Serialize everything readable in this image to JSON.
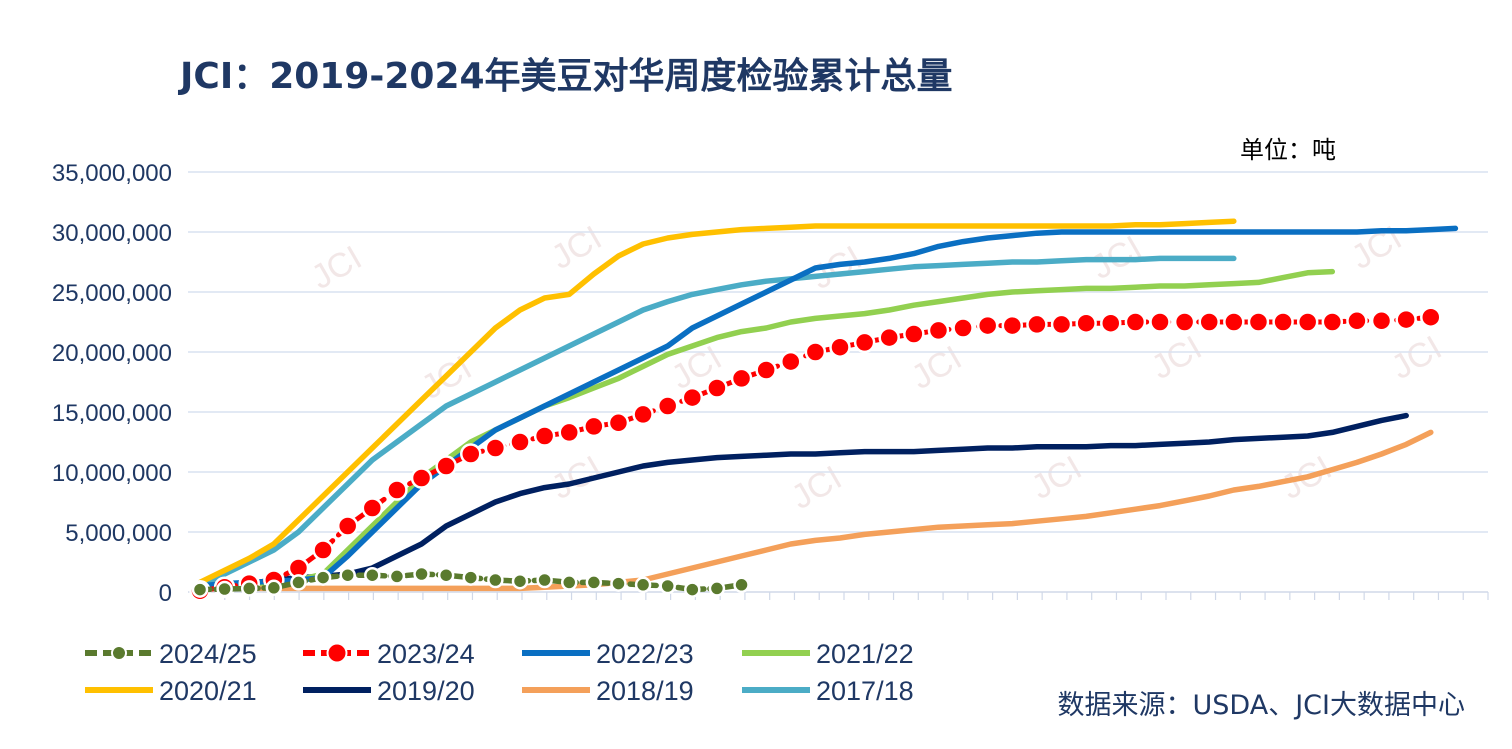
{
  "title": "JCI：2019-2024年美豆对华周度检验累计总量",
  "unit_label": "单位：吨",
  "source_label": "数据来源：USDA、JCI大数据中心",
  "watermark_text": "JCI",
  "chart_data": {
    "type": "line",
    "ylim": [
      0,
      35000000
    ],
    "yticks": [
      "0",
      "5,000,000",
      "10,000,000",
      "15,000,000",
      "20,000,000",
      "25,000,000",
      "30,000,000",
      "35,000,000"
    ],
    "grid": true,
    "legend_position": "bottom",
    "series": [
      {
        "name": "2024/25",
        "color": "#5a7a2e",
        "marker": "small-dot",
        "dashed": true,
        "values": [
          200000,
          250000,
          300000,
          350000,
          800000,
          1200000,
          1400000,
          1400000,
          1300000,
          1500000,
          1400000,
          1200000,
          1000000,
          900000,
          1000000,
          800000,
          800000,
          700000,
          600000,
          500000,
          200000,
          300000,
          600000
        ]
      },
      {
        "name": "2023/24",
        "color": "#ff0000",
        "marker": "big-dot",
        "dashed": true,
        "values": [
          100000,
          400000,
          700000,
          1000000,
          2000000,
          3500000,
          5500000,
          7000000,
          8500000,
          9500000,
          10500000,
          11500000,
          12000000,
          12500000,
          13000000,
          13300000,
          13800000,
          14100000,
          14800000,
          15500000,
          16200000,
          17000000,
          17800000,
          18500000,
          19200000,
          20000000,
          20400000,
          20800000,
          21200000,
          21500000,
          21800000,
          22000000,
          22200000,
          22200000,
          22300000,
          22300000,
          22400000,
          22400000,
          22500000,
          22500000,
          22500000,
          22500000,
          22500000,
          22500000,
          22500000,
          22500000,
          22500000,
          22600000,
          22600000,
          22700000,
          22900000
        ]
      },
      {
        "name": "2022/23",
        "color": "#0a6fc2",
        "marker": "none",
        "dashed": false,
        "values": [
          500000,
          700000,
          800000,
          900000,
          1000000,
          1200000,
          3000000,
          5000000,
          7000000,
          9000000,
          10500000,
          12000000,
          13500000,
          14500000,
          15500000,
          16500000,
          17500000,
          18500000,
          19500000,
          20500000,
          22000000,
          23000000,
          24000000,
          25000000,
          26000000,
          27000000,
          27300000,
          27500000,
          27800000,
          28200000,
          28800000,
          29200000,
          29500000,
          29700000,
          29900000,
          30000000,
          30000000,
          30000000,
          30000000,
          30000000,
          30000000,
          30000000,
          30000000,
          30000000,
          30000000,
          30000000,
          30000000,
          30000000,
          30100000,
          30100000,
          30200000,
          30300000
        ]
      },
      {
        "name": "2021/22",
        "color": "#92d050",
        "marker": "none",
        "dashed": false,
        "values": [
          500000,
          600000,
          700000,
          800000,
          1000000,
          1500000,
          3500000,
          5500000,
          7500000,
          9500000,
          11000000,
          12500000,
          13500000,
          14500000,
          15500000,
          16200000,
          17000000,
          17800000,
          18800000,
          19800000,
          20500000,
          21200000,
          21700000,
          22000000,
          22500000,
          22800000,
          23000000,
          23200000,
          23500000,
          23900000,
          24200000,
          24500000,
          24800000,
          25000000,
          25100000,
          25200000,
          25300000,
          25300000,
          25400000,
          25500000,
          25500000,
          25600000,
          25700000,
          25800000,
          26200000,
          26600000,
          26700000
        ]
      },
      {
        "name": "2020/21",
        "color": "#ffc000",
        "marker": "none",
        "dashed": false,
        "values": [
          800000,
          1800000,
          2800000,
          4000000,
          6000000,
          8000000,
          10000000,
          12000000,
          14000000,
          16000000,
          18000000,
          20000000,
          22000000,
          23500000,
          24500000,
          24800000,
          26500000,
          28000000,
          29000000,
          29500000,
          29800000,
          30000000,
          30200000,
          30300000,
          30400000,
          30500000,
          30500000,
          30500000,
          30500000,
          30500000,
          30500000,
          30500000,
          30500000,
          30500000,
          30500000,
          30500000,
          30500000,
          30500000,
          30600000,
          30600000,
          30700000,
          30800000,
          30900000
        ]
      },
      {
        "name": "2019/20",
        "color": "#002060",
        "marker": "none",
        "dashed": false,
        "values": [
          300000,
          500000,
          700000,
          1000000,
          1200000,
          1300000,
          1500000,
          2000000,
          3000000,
          4000000,
          5500000,
          6500000,
          7500000,
          8200000,
          8700000,
          9000000,
          9500000,
          10000000,
          10500000,
          10800000,
          11000000,
          11200000,
          11300000,
          11400000,
          11500000,
          11500000,
          11600000,
          11700000,
          11700000,
          11700000,
          11800000,
          11900000,
          12000000,
          12000000,
          12100000,
          12100000,
          12100000,
          12200000,
          12200000,
          12300000,
          12400000,
          12500000,
          12700000,
          12800000,
          12900000,
          13000000,
          13300000,
          13800000,
          14300000,
          14700000
        ]
      },
      {
        "name": "2018/19",
        "color": "#f4a05a",
        "marker": "none",
        "dashed": false,
        "values": [
          300000,
          300000,
          300000,
          300000,
          300000,
          300000,
          300000,
          300000,
          300000,
          300000,
          300000,
          300000,
          300000,
          300000,
          400000,
          500000,
          600000,
          800000,
          1000000,
          1500000,
          2000000,
          2500000,
          3000000,
          3500000,
          4000000,
          4300000,
          4500000,
          4800000,
          5000000,
          5200000,
          5400000,
          5500000,
          5600000,
          5700000,
          5900000,
          6100000,
          6300000,
          6600000,
          6900000,
          7200000,
          7600000,
          8000000,
          8500000,
          8800000,
          9200000,
          9600000,
          10200000,
          10800000,
          11500000,
          12300000,
          13300000
        ]
      },
      {
        "name": "2017/18",
        "color": "#4bacc6",
        "marker": "none",
        "dashed": false,
        "values": [
          500000,
          1500000,
          2500000,
          3500000,
          5000000,
          7000000,
          9000000,
          11000000,
          12500000,
          14000000,
          15500000,
          16500000,
          17500000,
          18500000,
          19500000,
          20500000,
          21500000,
          22500000,
          23500000,
          24200000,
          24800000,
          25200000,
          25600000,
          25900000,
          26100000,
          26300000,
          26500000,
          26700000,
          26900000,
          27100000,
          27200000,
          27300000,
          27400000,
          27500000,
          27500000,
          27600000,
          27700000,
          27700000,
          27700000,
          27800000,
          27800000,
          27800000,
          27800000
        ]
      }
    ]
  }
}
